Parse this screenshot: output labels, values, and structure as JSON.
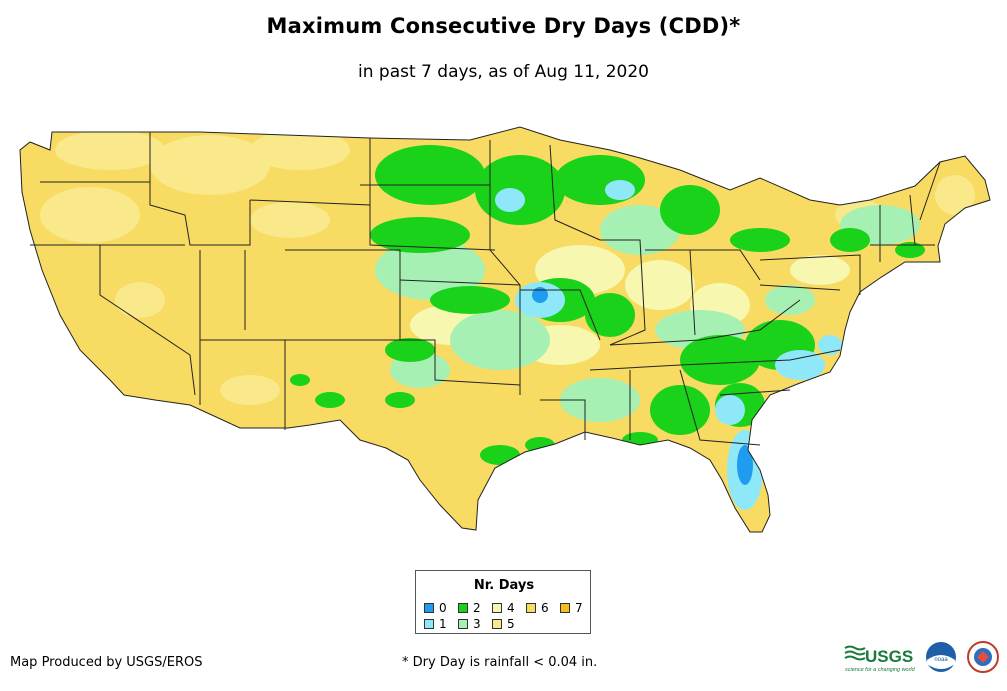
{
  "header": {
    "title": "Maximum Consecutive Dry Days (CDD)*",
    "subtitle": "in past 7 days, as of Aug 11, 2020"
  },
  "legend": {
    "title": "Nr. Days",
    "items": [
      {
        "label": "0",
        "color": "#1f9bf0"
      },
      {
        "label": "1",
        "color": "#8fe8f8"
      },
      {
        "label": "2",
        "color": "#19d219"
      },
      {
        "label": "3",
        "color": "#a6f0b4"
      },
      {
        "label": "4",
        "color": "#f7f7b0"
      },
      {
        "label": "5",
        "color": "#f9e98a"
      },
      {
        "label": "6",
        "color": "#f8db63"
      },
      {
        "label": "7",
        "color": "#f4bd19"
      }
    ]
  },
  "footer": {
    "credit": "Map Produced by USGS/EROS",
    "footnote": "* Dry Day is rainfall < 0.04 in.",
    "usgs_logo_text": "USGS",
    "usgs_tagline": "science for a changing world",
    "noaa_logo_text": "noaa"
  },
  "colors": {
    "state_border": "#222222",
    "background": "#ffffff"
  }
}
